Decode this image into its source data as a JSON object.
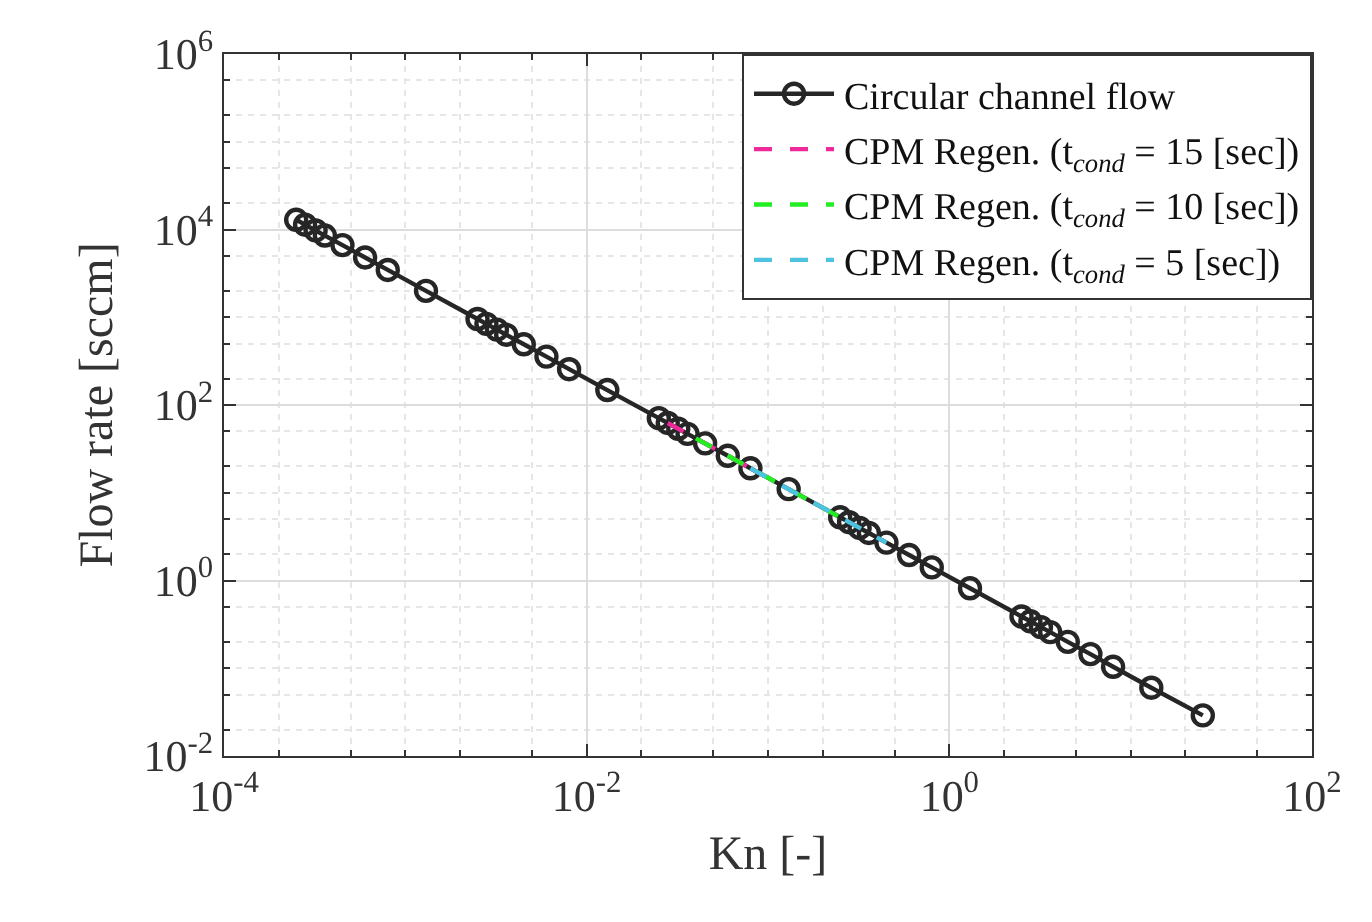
{
  "chart_data": {
    "type": "line",
    "xlabel": "Kn [-]",
    "ylabel": "Flow rate [sccm]",
    "log": "xy",
    "grid": true,
    "legend": "top right",
    "xlim": [
      0.0001,
      100
    ],
    "xticks": [
      {
        "value": 0.0001,
        "label": "10$^{-4}$"
      },
      {
        "value": 0.01,
        "label": "10$^{-2}$"
      },
      {
        "value": 1,
        "label": "10$^{0}$"
      },
      {
        "value": 100,
        "label": "10$^{2}$"
      }
    ],
    "ylim": [
      0.01,
      1000000
    ],
    "yticks": [
      {
        "value": 0.01,
        "label": "10$^{-2}$"
      },
      {
        "value": 1,
        "label": "10$^{0}$"
      },
      {
        "value": 100,
        "label": "10$^{2}$"
      },
      {
        "value": 10000,
        "label": "10$^{4}$"
      },
      {
        "value": 1000000,
        "label": "10$^{6}$"
      }
    ],
    "series": [
      {
        "name": "Circular channel flow",
        "color": "#262626",
        "marker": "circle",
        "line_style": "solid",
        "x": [
          0.00025,
          0.00028,
          0.00032,
          0.00036,
          0.00045,
          0.0006,
          0.0008,
          0.0013,
          0.0025,
          0.0028,
          0.0032,
          0.0036,
          0.0045,
          0.006,
          0.008,
          0.013,
          0.025,
          0.028,
          0.032,
          0.036,
          0.045,
          0.06,
          0.08,
          0.13,
          0.25,
          0.28,
          0.32,
          0.36,
          0.45,
          0.6,
          0.8,
          1.3,
          2.5,
          2.8,
          3.2,
          3.6,
          4.5,
          6,
          8,
          13,
          25
        ],
        "values": [
          12900,
          11350,
          9750,
          8530,
          6640,
          4800,
          3460,
          2000,
          955,
          841,
          723,
          632,
          492,
          356,
          256,
          148,
          70.8,
          62.4,
          53.6,
          46.9,
          36.5,
          26.4,
          19.0,
          11.0,
          5.25,
          4.62,
          3.97,
          3.48,
          2.7,
          1.95,
          1.41,
          0.815,
          0.389,
          0.343,
          0.294,
          0.258,
          0.2,
          0.145,
          0.104,
          0.06,
          0.029
        ]
      },
      {
        "name": "CPM Regen. (t$_{cond}$ = 15 [sec])",
        "color": "#ee2a9a",
        "marker": "none",
        "line_style": "dashed",
        "x": [
          0.028,
          0.04,
          0.06,
          0.08
        ],
        "values": [
          62.4,
          41.6,
          26.4,
          19.0
        ]
      },
      {
        "name": "CPM Regen. (t$_{cond}$ = 10 [sec])",
        "color": "#22ee22",
        "marker": "none",
        "line_style": "dashed",
        "x": [
          0.04,
          0.06,
          0.1,
          0.15,
          0.25
        ],
        "values": [
          41.6,
          26.4,
          14.8,
          9.35,
          5.25
        ]
      },
      {
        "name": "CPM Regen. (t$_{cond}$ = 5 [sec])",
        "color": "#4dc3e0",
        "marker": "none",
        "line_style": "dashed",
        "x": [
          0.08,
          0.12,
          0.2,
          0.3,
          0.45
        ],
        "values": [
          19.0,
          12.0,
          6.76,
          4.28,
          2.7
        ]
      }
    ]
  }
}
